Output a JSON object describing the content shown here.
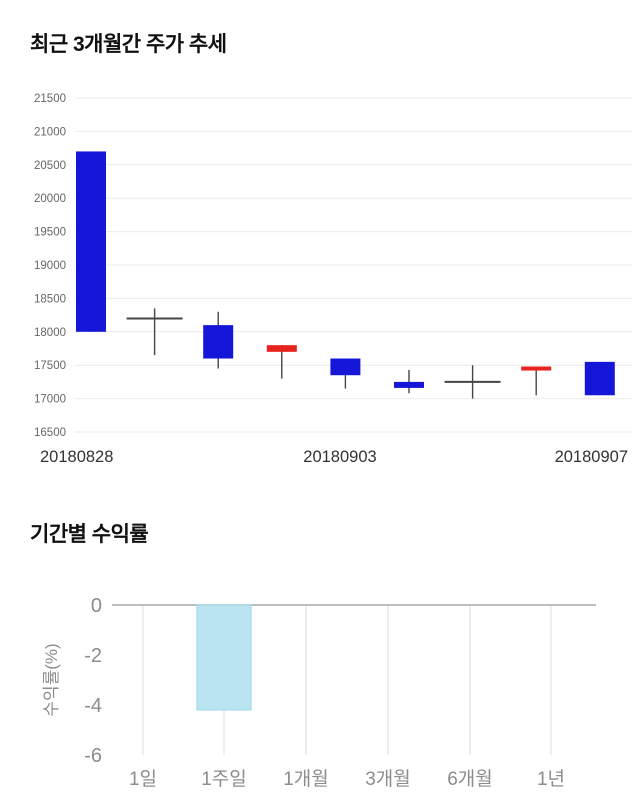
{
  "page": {
    "background": "#ffffff"
  },
  "chart_data": [
    {
      "type": "candlestick",
      "title": "최근 3개월간 주가 추세",
      "ylim": [
        16500,
        21500
      ],
      "yticks": [
        21500,
        21000,
        20500,
        20000,
        19500,
        19000,
        18500,
        18000,
        17500,
        17000,
        16500
      ],
      "x_axis_labels": [
        {
          "text": "20180828",
          "align": "left"
        },
        {
          "text": "20180903",
          "align": "center"
        },
        {
          "text": "20180907",
          "align": "right"
        }
      ],
      "colors": {
        "up": "#e8231f",
        "down": "#1616d9",
        "neutral": "#454545",
        "grid": "#ebebeb",
        "tick_text": "#666666",
        "date_text": "#333333"
      },
      "candles": [
        {
          "open": 20700,
          "close": 18000,
          "high": 20700,
          "low": 18000,
          "dir": "down"
        },
        {
          "open": 18200,
          "close": 18200,
          "high": 18350,
          "low": 17650,
          "dir": "neutral"
        },
        {
          "open": 18100,
          "close": 17600,
          "high": 18300,
          "low": 17450,
          "dir": "down"
        },
        {
          "open": 17700,
          "close": 17800,
          "high": 17800,
          "low": 17300,
          "dir": "up"
        },
        {
          "open": 17600,
          "close": 17350,
          "high": 17600,
          "low": 17150,
          "dir": "down"
        },
        {
          "open": 17250,
          "close": 17160,
          "high": 17430,
          "low": 17080,
          "dir": "down"
        },
        {
          "open": 17250,
          "close": 17250,
          "high": 17500,
          "low": 17000,
          "dir": "neutral"
        },
        {
          "open": 17420,
          "close": 17480,
          "high": 17480,
          "low": 17050,
          "dir": "up"
        },
        {
          "open": 17550,
          "close": 17050,
          "high": 17550,
          "low": 17050,
          "dir": "down"
        }
      ],
      "legend": "none",
      "grid": "horizontal"
    },
    {
      "type": "bar",
      "title": "기간별 수익률",
      "ylabel": "수익률(%)",
      "categories": [
        "1일",
        "1주일",
        "1개월",
        "3개월",
        "6개월",
        "1년"
      ],
      "values": [
        null,
        -4.2,
        null,
        null,
        null,
        null
      ],
      "yticks": [
        0,
        -2,
        -4,
        -6
      ],
      "ylim": [
        -6,
        0
      ],
      "bar_color": "#b9e5f1",
      "bar_border": "#9ad6e8",
      "grid_color": "#dddddd",
      "zero_line_color": "#aaaaaa",
      "tick_text": "#8c8c8c",
      "legend": "none",
      "grid": "vertical"
    }
  ]
}
